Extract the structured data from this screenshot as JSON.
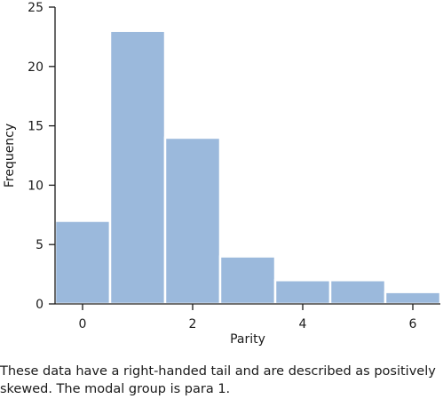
{
  "chart_data": {
    "type": "bar",
    "title": "",
    "xlabel": "Parity",
    "ylabel": "Frequency",
    "categories": [
      0,
      1,
      2,
      3,
      4,
      5,
      6
    ],
    "values": [
      7,
      23,
      14,
      4,
      2,
      2,
      1
    ],
    "xlim": [
      -0.5,
      6.5
    ],
    "ylim": [
      0,
      25
    ],
    "xticks": [
      0,
      2,
      4,
      6
    ],
    "yticks": [
      0,
      5,
      10,
      15,
      20,
      25
    ],
    "grid": false,
    "bar_color": "#9bb9dc"
  },
  "caption": {
    "line1": "These data have a right-handed tail and are described as positively",
    "line2": "skewed. The modal group is para 1."
  }
}
